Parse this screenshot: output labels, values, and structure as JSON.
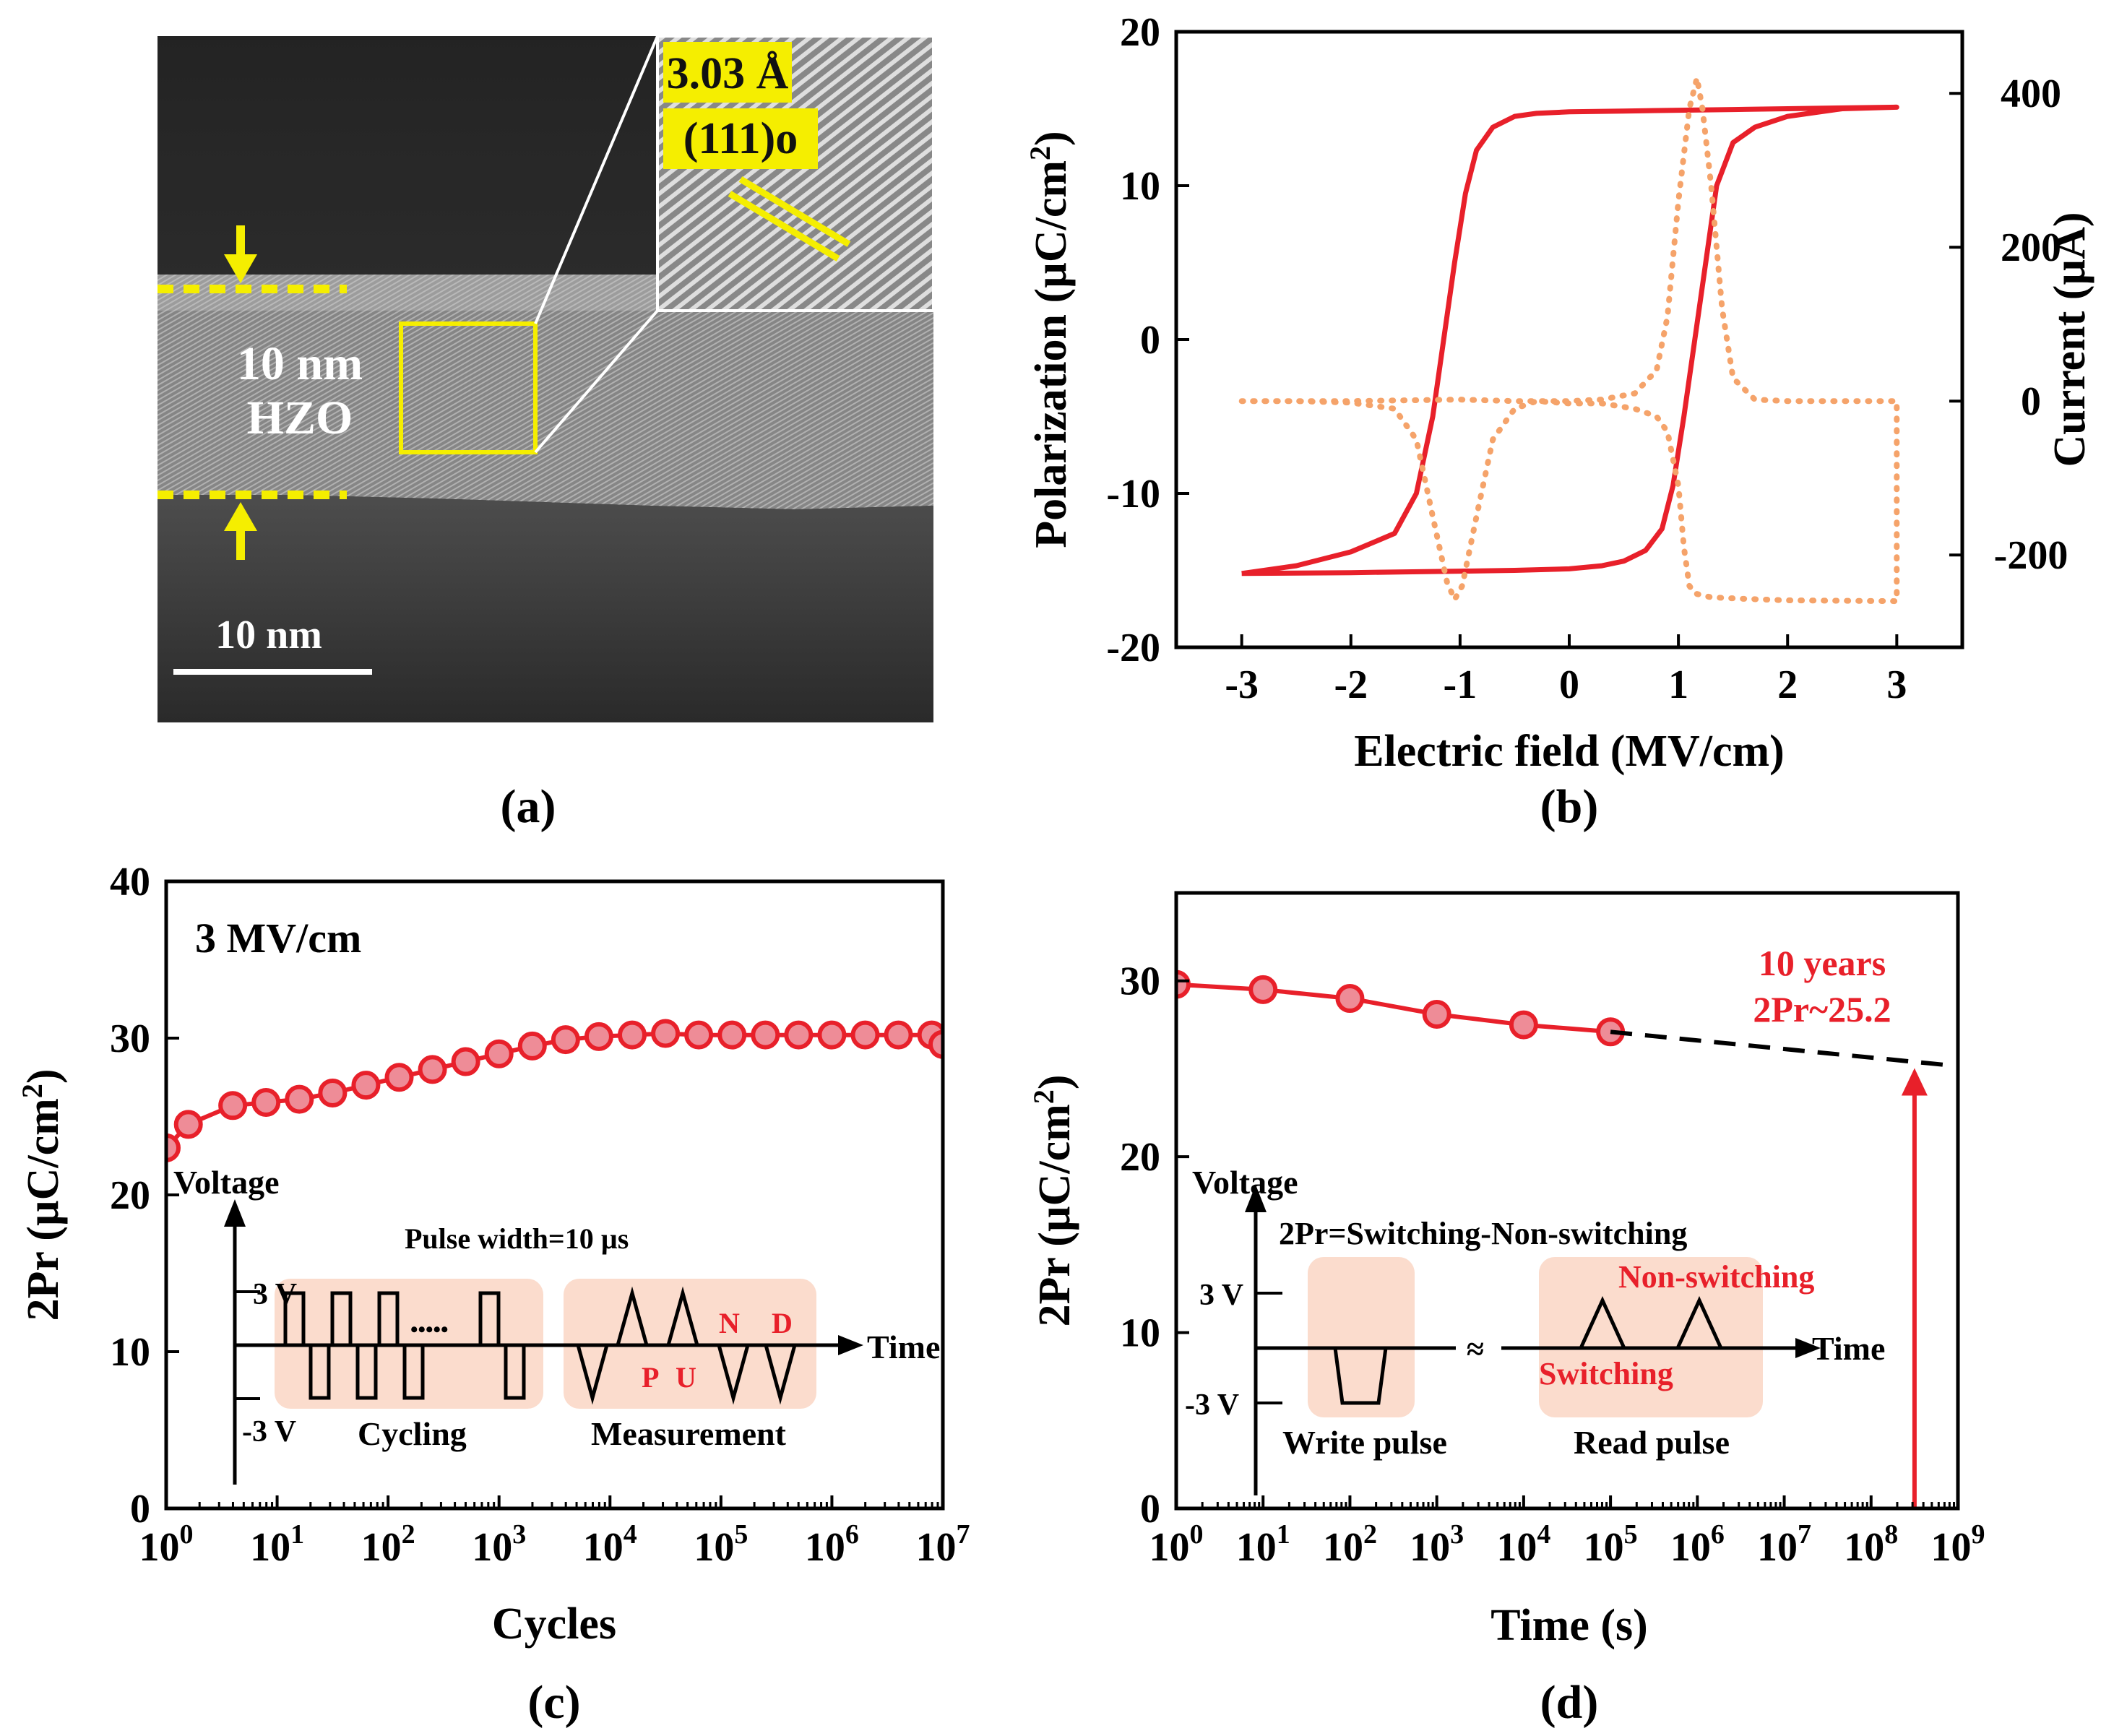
{
  "panels": {
    "a": {
      "label": "(a)",
      "layer_label_line1": "10 nm",
      "layer_label_line2": "HZO",
      "scale_bar_label": "10 nm",
      "inset_spacing": "3.03 Å",
      "inset_plane": "(111)o"
    },
    "b": {
      "label": "(b)"
    },
    "c": {
      "label": "(c)",
      "field_annotation": "3 MV/cm",
      "inset": {
        "voltage_axis": "Voltage",
        "time_axis": "Time",
        "pulse_width": "Pulse width=10 µs",
        "v_high": "3 V",
        "v_low": "-3 V",
        "dots": "•••••",
        "cycling": "Cycling",
        "measurement": "Measurement",
        "p": "P",
        "u": "U",
        "n": "N",
        "d": "D"
      }
    },
    "d": {
      "label": "(d)",
      "extrap_line1": "10 years",
      "extrap_line2": "2Pr~25.2",
      "inset": {
        "voltage_axis": "Voltage",
        "time_axis": "Time",
        "formula": "2Pr=Switching-Non-switching",
        "v_high": "3 V",
        "v_low": "-3 V",
        "break_mark": "≈",
        "write_pulse": "Write pulse",
        "read_pulse": "Read pulse",
        "switching": "Switching",
        "non_switching": "Non-switching"
      }
    }
  },
  "colors": {
    "red": "#e8202a",
    "orange": "#f5a36a",
    "marker_fill": "#ee8c97",
    "box_fill": "#fbdccd",
    "yellow": "#f5ee00"
  },
  "chart_data": [
    {
      "type": "line",
      "title": "",
      "xlabel": "Electric field (MV/cm)",
      "ylabel": "Polarization (µC/cm²)",
      "y2label": "Current (µA)",
      "xlim": [
        -3.6,
        3.6
      ],
      "ylim": [
        -20,
        20
      ],
      "y2lim": [
        -320,
        480
      ],
      "xticks": [
        "-3",
        "-2",
        "-1",
        "0",
        "1",
        "2",
        "3"
      ],
      "yticks": [
        "-20",
        "-10",
        "0",
        "10",
        "20"
      ],
      "y2ticks": [
        "-200",
        "0",
        "200",
        "400"
      ],
      "series": [
        {
          "name": "Polarization",
          "axis": "left",
          "style": "solid",
          "points": [
            [
              -3,
              -15.2
            ],
            [
              -2.5,
              -14.7
            ],
            [
              -2,
              -13.8
            ],
            [
              -1.6,
              -12.6
            ],
            [
              -1.4,
              -10
            ],
            [
              -1.25,
              -5
            ],
            [
              -1.15,
              0
            ],
            [
              -1.05,
              5
            ],
            [
              -0.95,
              9.5
            ],
            [
              -0.85,
              12.3
            ],
            [
              -0.7,
              13.8
            ],
            [
              -0.5,
              14.5
            ],
            [
              -0.3,
              14.7
            ],
            [
              0,
              14.8
            ],
            [
              0.5,
              14.85
            ],
            [
              1,
              14.9
            ],
            [
              1.5,
              14.95
            ],
            [
              2,
              15.0
            ],
            [
              2.5,
              15.05
            ],
            [
              3,
              15.1
            ],
            [
              2.5,
              15.0
            ],
            [
              2,
              14.5
            ],
            [
              1.7,
              13.8
            ],
            [
              1.5,
              12.8
            ],
            [
              1.35,
              10
            ],
            [
              1.25,
              5
            ],
            [
              1.15,
              0
            ],
            [
              1.05,
              -5
            ],
            [
              0.95,
              -9.5
            ],
            [
              0.85,
              -12.3
            ],
            [
              0.7,
              -13.7
            ],
            [
              0.5,
              -14.4
            ],
            [
              0.3,
              -14.7
            ],
            [
              0,
              -14.9
            ],
            [
              -0.5,
              -15.0
            ],
            [
              -1,
              -15.05
            ],
            [
              -1.5,
              -15.1
            ],
            [
              -2,
              -15.15
            ],
            [
              -3,
              -15.2
            ]
          ]
        },
        {
          "name": "Current",
          "axis": "right",
          "style": "dotted",
          "points": [
            [
              -3,
              0
            ],
            [
              -2.5,
              0
            ],
            [
              -2,
              -2
            ],
            [
              -1.6,
              -10
            ],
            [
              -1.4,
              -50
            ],
            [
              -1.25,
              -150
            ],
            [
              -1.12,
              -235
            ],
            [
              -1.05,
              -258
            ],
            [
              -0.98,
              -240
            ],
            [
              -0.85,
              -150
            ],
            [
              -0.7,
              -50
            ],
            [
              -0.5,
              -10
            ],
            [
              -0.3,
              0
            ],
            [
              0,
              -3
            ],
            [
              0.3,
              -3
            ],
            [
              0.6,
              -10
            ],
            [
              0.8,
              -20
            ],
            [
              0.9,
              -40
            ],
            [
              1,
              -110
            ],
            [
              1.05,
              -190
            ],
            [
              1.1,
              -240
            ],
            [
              1.15,
              -250
            ],
            [
              1.3,
              -255
            ],
            [
              1.6,
              -257
            ],
            [
              2,
              -259
            ],
            [
              3,
              -260
            ],
            [
              3,
              0
            ],
            [
              2.5,
              0
            ],
            [
              2,
              0
            ],
            [
              1.7,
              2
            ],
            [
              1.5,
              30
            ],
            [
              1.4,
              120
            ],
            [
              1.3,
              280
            ],
            [
              1.22,
              380
            ],
            [
              1.17,
              420
            ],
            [
              1.1,
              380
            ],
            [
              1.0,
              260
            ],
            [
              0.9,
              110
            ],
            [
              0.8,
              40
            ],
            [
              0.6,
              10
            ],
            [
              0.3,
              2
            ],
            [
              0,
              0
            ],
            [
              -0.5,
              0
            ],
            [
              -1,
              2
            ],
            [
              -2,
              0
            ],
            [
              -3,
              0
            ]
          ]
        }
      ]
    },
    {
      "type": "line",
      "title": "",
      "xlabel": "Cycles",
      "ylabel": "2Pr (µC/cm²)",
      "xscale": "log",
      "xlim_exp": [
        0,
        7
      ],
      "ylim": [
        0,
        40
      ],
      "xticks_exp": [
        "0",
        "1",
        "2",
        "3",
        "4",
        "5",
        "6",
        "7"
      ],
      "yticks": [
        "0",
        "10",
        "20",
        "30",
        "40"
      ],
      "series": [
        {
          "name": "2Pr",
          "style": "solid-markers",
          "x_exp": [
            0,
            0.2,
            0.6,
            0.9,
            1.2,
            1.5,
            1.8,
            2.1,
            2.4,
            2.7,
            3.0,
            3.3,
            3.6,
            3.9,
            4.2,
            4.5,
            4.8,
            5.1,
            5.4,
            5.7,
            6.0,
            6.3,
            6.6,
            6.9,
            7.0
          ],
          "values": [
            23.0,
            24.5,
            25.7,
            25.9,
            26.1,
            26.5,
            27.0,
            27.5,
            28.0,
            28.5,
            29.0,
            29.5,
            29.9,
            30.1,
            30.2,
            30.3,
            30.2,
            30.2,
            30.2,
            30.2,
            30.2,
            30.2,
            30.2,
            30.2,
            29.6
          ]
        }
      ]
    },
    {
      "type": "line",
      "title": "",
      "xlabel": "Time (s)",
      "ylabel": "2Pr (µC/cm²)",
      "xscale": "log",
      "xlim_exp": [
        0,
        9
      ],
      "ylim": [
        0,
        35
      ],
      "xticks_exp": [
        "0",
        "1",
        "2",
        "3",
        "4",
        "5",
        "6",
        "7",
        "8",
        "9"
      ],
      "yticks": [
        "0",
        "10",
        "20",
        "30"
      ],
      "series": [
        {
          "name": "2Pr",
          "style": "solid-markers",
          "x_exp": [
            0,
            1,
            2,
            3,
            4,
            5
          ],
          "values": [
            29.8,
            29.5,
            29.0,
            28.1,
            27.5,
            27.1
          ]
        },
        {
          "name": "extrapolation",
          "style": "dashed",
          "x_exp": [
            5,
            8.9
          ],
          "values": [
            27.1,
            25.2
          ]
        }
      ],
      "annotation": {
        "x_exp": 8.5,
        "value": 25.2
      }
    }
  ]
}
